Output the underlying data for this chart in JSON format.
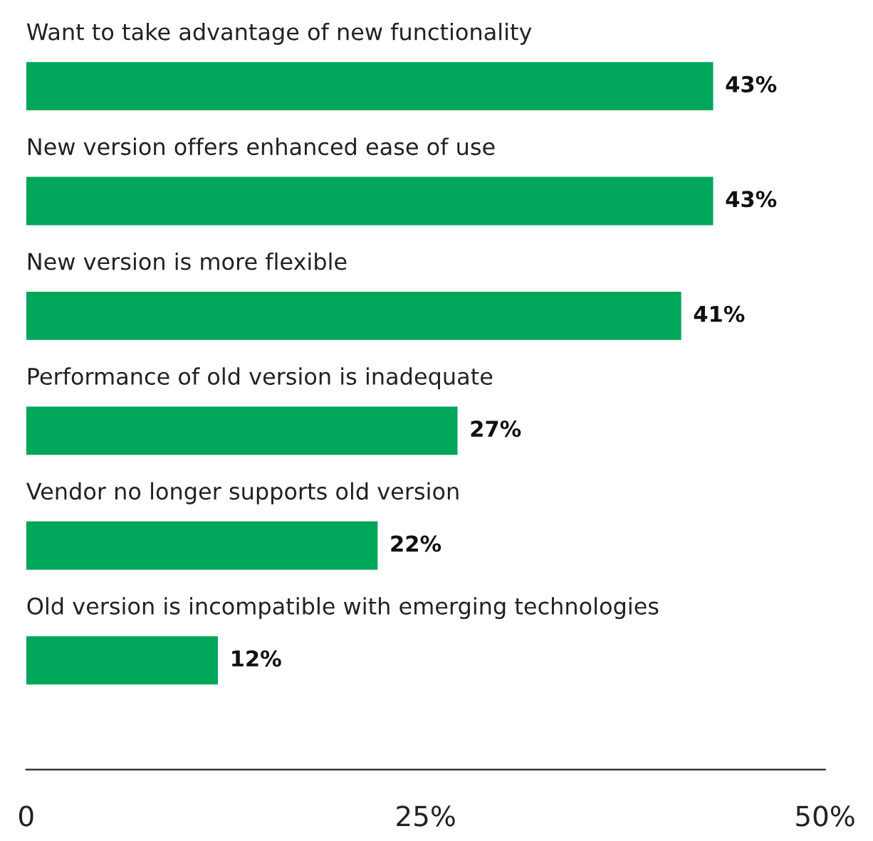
{
  "chart_data": {
    "type": "bar",
    "orientation": "horizontal",
    "categories": [
      "Want to take advantage of new functionality",
      "New version offers enhanced ease of use",
      "New version is more flexible",
      "Performance of old version is inadequate",
      "Vendor no longer supports old version",
      "Old version is incompatible with emerging technologies"
    ],
    "values": [
      43,
      43,
      41,
      27,
      22,
      12
    ],
    "value_labels": [
      "43%",
      "43%",
      "41%",
      "27%",
      "22%",
      "12%"
    ],
    "color": "#00a65a",
    "xlim": [
      0,
      50
    ],
    "xticks": [
      0,
      {
        "value": 25,
        "label": "25%"
      },
      {
        "value": 50,
        "label": "50%"
      }
    ],
    "grid": false
  }
}
